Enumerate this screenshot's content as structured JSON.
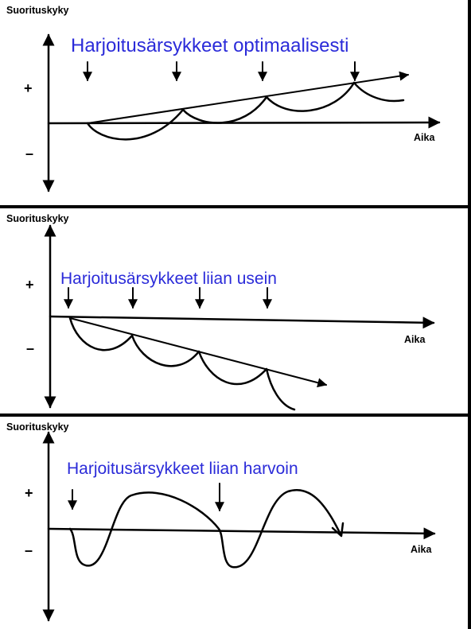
{
  "panels": [
    {
      "ylabel": "Suorituskyky",
      "title": "Harjoitusärsykkeet optimaalisesti",
      "plus": "+",
      "minus": "–",
      "xlabel": "Aika"
    },
    {
      "ylabel": "Suorituskyky",
      "title": "Harjoitusärsykkeet liian usein",
      "plus": "+",
      "minus": "–",
      "xlabel": "Aika"
    },
    {
      "ylabel": "Suorituskyky",
      "title": "Harjoitusärsykkeet liian harvoin",
      "plus": "+",
      "minus": "–",
      "xlabel": "Aika"
    }
  ]
}
